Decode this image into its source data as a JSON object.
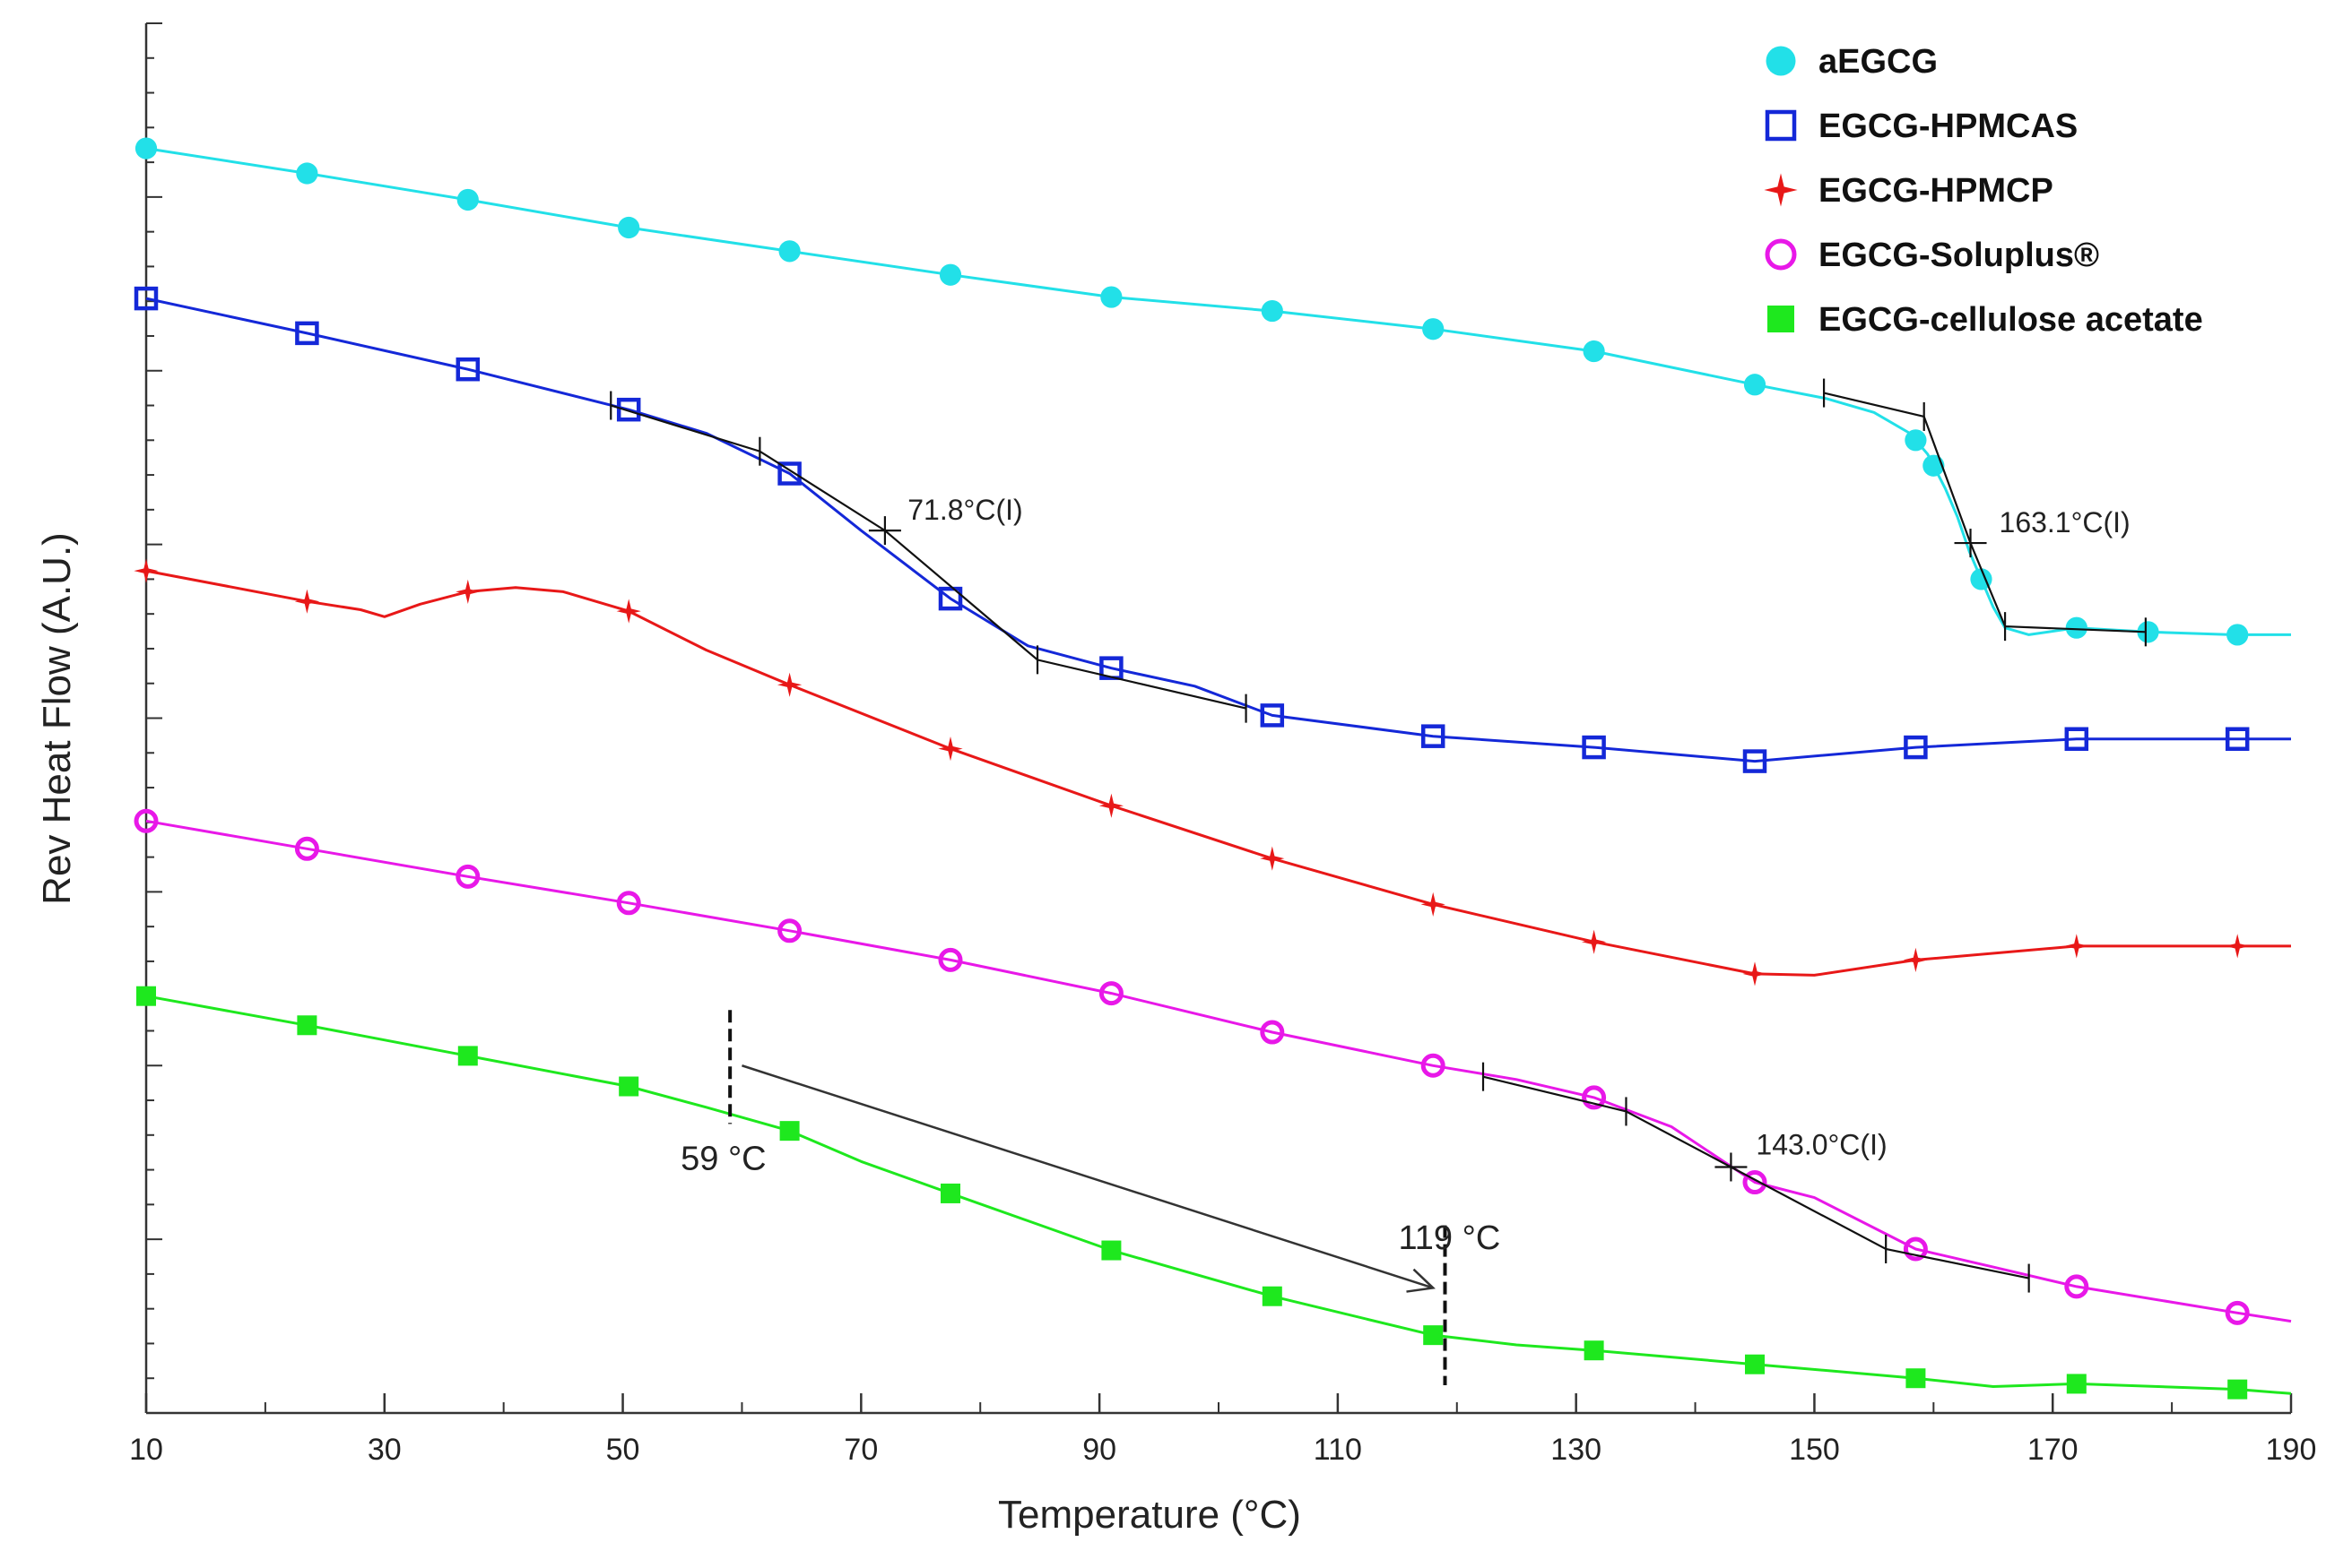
{
  "chart_data": {
    "type": "line",
    "title": "",
    "xlabel": "Temperature (°C)",
    "ylabel": "Rev Heat Flow (A.U.)",
    "xlim": [
      10,
      190
    ],
    "ylim": [
      0,
      100
    ],
    "x_ticks": [
      "10",
      "30",
      "50",
      "70",
      "90",
      "110",
      "130",
      "150",
      "170",
      "190"
    ],
    "grid": false,
    "legend_position": "top-right",
    "series": [
      {
        "name": "aEGCG",
        "color": "#22e0e8",
        "marker": "filled-circle",
        "x": [
          10,
          23.5,
          37,
          50.5,
          64,
          77.5,
          91,
          104.5,
          118,
          131.5,
          145,
          151,
          155,
          158,
          159.5,
          161,
          162,
          163,
          164,
          165,
          166,
          168,
          172,
          178,
          185,
          190
        ],
        "y": [
          91,
          89.2,
          87.3,
          85.3,
          83.6,
          81.9,
          80.3,
          79.3,
          78,
          76.4,
          74,
          73,
          72,
          70.5,
          69,
          66.5,
          64.5,
          62,
          60,
          58,
          56.5,
          56,
          56.5,
          56.2,
          56,
          56
        ]
      },
      {
        "name": "EGCG-HPMCAS",
        "color": "#1428d8",
        "marker": "open-square",
        "x": [
          10,
          23.5,
          37,
          50.5,
          57,
          64,
          70,
          77.5,
          84,
          91,
          98,
          104.5,
          118,
          131.5,
          145,
          158.5,
          172,
          185.5,
          190
        ],
        "y": [
          80.2,
          77.7,
          75.1,
          72.2,
          70.5,
          67.6,
          63.5,
          58.6,
          55.2,
          53.6,
          52.3,
          50.2,
          48.7,
          47.9,
          46.9,
          47.9,
          48.5,
          48.5,
          48.5
        ]
      },
      {
        "name": "EGCG-HPMCP",
        "color": "#e81818",
        "marker": "star",
        "x": [
          10,
          23.5,
          28,
          30,
          33,
          37,
          41,
          45,
          50.5,
          57,
          64,
          77.5,
          91,
          104.5,
          118,
          131.5,
          145,
          150,
          158.5,
          172,
          185.5,
          190
        ],
        "y": [
          60.6,
          58.4,
          57.8,
          57.3,
          58.2,
          59.1,
          59.4,
          59.1,
          57.7,
          54.9,
          52.4,
          47.8,
          43.7,
          39.9,
          36.6,
          33.9,
          31.6,
          31.5,
          32.6,
          33.6,
          33.6,
          33.6
        ]
      },
      {
        "name": "EGCG-Soluplus®",
        "color": "#e818e8",
        "marker": "open-circle",
        "x": [
          10,
          23.5,
          37,
          50.5,
          64,
          77.5,
          91,
          104.5,
          118,
          125,
          131.5,
          138,
          145,
          150,
          158.5,
          165,
          172,
          185.5,
          190
        ],
        "y": [
          42.6,
          40.6,
          38.6,
          36.7,
          34.7,
          32.6,
          30.2,
          27.4,
          25,
          24,
          22.7,
          20.6,
          16.6,
          15.5,
          11.8,
          10.5,
          9.1,
          7.2,
          6.6
        ]
      },
      {
        "name": "EGCG-cellulose acetate",
        "color": "#1ee81e",
        "marker": "filled-square",
        "x": [
          10,
          23.5,
          37,
          50.5,
          57,
          64,
          70,
          77.5,
          91,
          104.5,
          118,
          125,
          131.5,
          145,
          158.5,
          165,
          172,
          185.5,
          190
        ],
        "y": [
          30,
          27.9,
          25.7,
          23.5,
          22,
          20.3,
          18.1,
          15.8,
          11.7,
          8.4,
          5.6,
          4.9,
          4.5,
          3.5,
          2.5,
          1.9,
          2.1,
          1.7,
          1.4
        ]
      }
    ],
    "tangent_fits": [
      {
        "series": "EGCG-HPMCAS",
        "x": [
          49,
          61.5,
          72,
          84.8,
          102.3
        ],
        "y": [
          72.5,
          69.2,
          63.5,
          54.2,
          50.7
        ]
      },
      {
        "series": "aEGCG",
        "x": [
          150.8,
          159.2,
          163.1,
          166,
          177.8
        ],
        "y": [
          73.4,
          71.7,
          62.6,
          56.6,
          56.2
        ]
      },
      {
        "series": "EGCG-Soluplus®",
        "x": [
          122.2,
          134.2,
          143,
          156,
          168
        ],
        "y": [
          24.2,
          21.7,
          17.7,
          11.8,
          9.7
        ]
      }
    ],
    "annotations": [
      {
        "text": "71.8°C(I)",
        "x": 71.8,
        "y": 63.5
      },
      {
        "text": "163.1°C(I)",
        "x": 163.1,
        "y": 62.6
      },
      {
        "text": "143.0°C(I)",
        "x": 143.0,
        "y": 17.7
      },
      {
        "text": "59 °C",
        "x": 59,
        "y": 17.5
      },
      {
        "text": "119 °C",
        "x": 119,
        "y": 11.5
      }
    ],
    "arrow": {
      "from_x": 60,
      "from_y": 25,
      "to_x": 118,
      "to_y": 9
    }
  }
}
